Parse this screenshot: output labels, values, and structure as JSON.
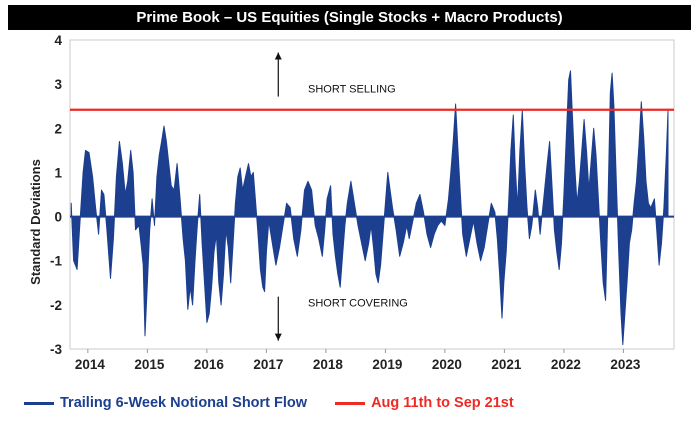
{
  "title": "Prime Book – US Equities (Single Stocks + Macro Products)",
  "colors": {
    "series": "#1c3f8f",
    "threshold": "#ee2a24",
    "title_bg": "#000000"
  },
  "chart_data": {
    "type": "area",
    "title": "Prime Book – US Equities (Single Stocks + Macro Products)",
    "ylabel": "Standard Deviations",
    "xlabel": "",
    "ylim": [
      -3,
      4
    ],
    "yticks": [
      "-3",
      "-2",
      "-1",
      "0",
      "1",
      "2",
      "3",
      "4"
    ],
    "xlim": [
      2013.7,
      2023.85
    ],
    "xticks": [
      "2014",
      "2015",
      "2016",
      "2017",
      "2018",
      "2019",
      "2020",
      "2021",
      "2022",
      "2023"
    ],
    "grid": false,
    "legend_position": "bottom",
    "annotations": [
      {
        "text": "SHORT SELLING",
        "x": 2017.7,
        "y": 2.9,
        "arrow": "up"
      },
      {
        "text": "SHORT COVERING",
        "x": 2017.7,
        "y": -1.95,
        "arrow": "down"
      }
    ],
    "series": [
      {
        "name": "Trailing 6-Week Notional Short Flow",
        "style": "area",
        "points": [
          [
            2013.72,
            0.3
          ],
          [
            2013.76,
            -1.0
          ],
          [
            2013.82,
            -1.2
          ],
          [
            2013.86,
            -0.3
          ],
          [
            2013.92,
            1.0
          ],
          [
            2013.96,
            1.5
          ],
          [
            2014.02,
            1.45
          ],
          [
            2014.08,
            0.9
          ],
          [
            2014.13,
            0.2
          ],
          [
            2014.18,
            -0.4
          ],
          [
            2014.23,
            0.6
          ],
          [
            2014.27,
            0.5
          ],
          [
            2014.32,
            -0.3
          ],
          [
            2014.38,
            -1.4
          ],
          [
            2014.43,
            -0.5
          ],
          [
            2014.48,
            0.9
          ],
          [
            2014.53,
            1.7
          ],
          [
            2014.58,
            1.2
          ],
          [
            2014.63,
            0.5
          ],
          [
            2014.67,
            0.8
          ],
          [
            2014.72,
            1.5
          ],
          [
            2014.76,
            1.0
          ],
          [
            2014.8,
            -0.3
          ],
          [
            2014.86,
            -0.2
          ],
          [
            2014.9,
            -0.7
          ],
          [
            2014.93,
            -1.1
          ],
          [
            2014.96,
            -2.7
          ],
          [
            2015.0,
            -1.5
          ],
          [
            2015.04,
            -0.3
          ],
          [
            2015.08,
            0.4
          ],
          [
            2015.12,
            -0.2
          ],
          [
            2015.16,
            0.9
          ],
          [
            2015.2,
            1.4
          ],
          [
            2015.24,
            1.7
          ],
          [
            2015.28,
            2.05
          ],
          [
            2015.32,
            1.7
          ],
          [
            2015.36,
            1.2
          ],
          [
            2015.4,
            0.7
          ],
          [
            2015.45,
            0.6
          ],
          [
            2015.5,
            1.2
          ],
          [
            2015.55,
            0.4
          ],
          [
            2015.6,
            -0.5
          ],
          [
            2015.64,
            -1.0
          ],
          [
            2015.68,
            -2.1
          ],
          [
            2015.72,
            -1.6
          ],
          [
            2015.76,
            -2.0
          ],
          [
            2015.8,
            -1.0
          ],
          [
            2015.84,
            -0.2
          ],
          [
            2015.88,
            0.5
          ],
          [
            2015.92,
            -0.6
          ],
          [
            2015.96,
            -1.5
          ],
          [
            2016.0,
            -2.4
          ],
          [
            2016.04,
            -2.2
          ],
          [
            2016.08,
            -1.6
          ],
          [
            2016.12,
            -0.8
          ],
          [
            2016.16,
            -0.4
          ],
          [
            2016.2,
            -1.5
          ],
          [
            2016.24,
            -2.0
          ],
          [
            2016.28,
            -1.3
          ],
          [
            2016.32,
            -0.3
          ],
          [
            2016.36,
            -0.7
          ],
          [
            2016.4,
            -1.5
          ],
          [
            2016.44,
            -0.6
          ],
          [
            2016.48,
            0.3
          ],
          [
            2016.52,
            0.9
          ],
          [
            2016.56,
            1.1
          ],
          [
            2016.6,
            0.6
          ],
          [
            2016.65,
            0.9
          ],
          [
            2016.7,
            1.2
          ],
          [
            2016.74,
            0.9
          ],
          [
            2016.78,
            1.0
          ],
          [
            2016.82,
            0.3
          ],
          [
            2016.86,
            -0.4
          ],
          [
            2016.9,
            -1.2
          ],
          [
            2016.94,
            -1.6
          ],
          [
            2016.97,
            -1.7
          ],
          [
            2017.0,
            -0.8
          ],
          [
            2017.04,
            -0.1
          ],
          [
            2017.1,
            -0.6
          ],
          [
            2017.16,
            -1.1
          ],
          [
            2017.22,
            -0.7
          ],
          [
            2017.28,
            -0.2
          ],
          [
            2017.34,
            0.3
          ],
          [
            2017.4,
            0.2
          ],
          [
            2017.46,
            -0.5
          ],
          [
            2017.52,
            -0.9
          ],
          [
            2017.58,
            -0.3
          ],
          [
            2017.64,
            0.6
          ],
          [
            2017.7,
            0.8
          ],
          [
            2017.76,
            0.6
          ],
          [
            2017.82,
            -0.2
          ],
          [
            2017.88,
            -0.5
          ],
          [
            2017.94,
            -0.9
          ],
          [
            2017.98,
            -0.3
          ],
          [
            2018.02,
            0.4
          ],
          [
            2018.08,
            0.7
          ],
          [
            2018.12,
            -0.4
          ],
          [
            2018.16,
            -0.9
          ],
          [
            2018.2,
            -1.3
          ],
          [
            2018.24,
            -1.6
          ],
          [
            2018.28,
            -0.9
          ],
          [
            2018.32,
            -0.2
          ],
          [
            2018.36,
            0.3
          ],
          [
            2018.42,
            0.8
          ],
          [
            2018.48,
            0.3
          ],
          [
            2018.54,
            -0.2
          ],
          [
            2018.6,
            -0.6
          ],
          [
            2018.66,
            -1.0
          ],
          [
            2018.72,
            -0.6
          ],
          [
            2018.76,
            -0.2
          ],
          [
            2018.8,
            -0.7
          ],
          [
            2018.84,
            -1.3
          ],
          [
            2018.88,
            -1.5
          ],
          [
            2018.92,
            -1.1
          ],
          [
            2018.96,
            -0.4
          ],
          [
            2019.0,
            0.3
          ],
          [
            2019.04,
            1.0
          ],
          [
            2019.08,
            0.6
          ],
          [
            2019.12,
            0.2
          ],
          [
            2019.18,
            -0.3
          ],
          [
            2019.24,
            -0.9
          ],
          [
            2019.3,
            -0.6
          ],
          [
            2019.36,
            -0.2
          ],
          [
            2019.4,
            -0.5
          ],
          [
            2019.46,
            -0.1
          ],
          [
            2019.52,
            0.3
          ],
          [
            2019.58,
            0.5
          ],
          [
            2019.64,
            0.1
          ],
          [
            2019.7,
            -0.4
          ],
          [
            2019.76,
            -0.7
          ],
          [
            2019.82,
            -0.4
          ],
          [
            2019.88,
            -0.2
          ],
          [
            2019.94,
            -0.1
          ],
          [
            2020.0,
            -0.2
          ],
          [
            2020.06,
            0.4
          ],
          [
            2020.1,
            1.0
          ],
          [
            2020.14,
            1.7
          ],
          [
            2020.18,
            2.55
          ],
          [
            2020.22,
            1.5
          ],
          [
            2020.26,
            0.5
          ],
          [
            2020.3,
            -0.4
          ],
          [
            2020.36,
            -0.9
          ],
          [
            2020.42,
            -0.5
          ],
          [
            2020.48,
            -0.1
          ],
          [
            2020.54,
            -0.6
          ],
          [
            2020.6,
            -1.0
          ],
          [
            2020.66,
            -0.7
          ],
          [
            2020.72,
            -0.2
          ],
          [
            2020.78,
            0.3
          ],
          [
            2020.84,
            0.1
          ],
          [
            2020.88,
            -0.5
          ],
          [
            2020.92,
            -1.3
          ],
          [
            2020.96,
            -2.3
          ],
          [
            2020.99,
            -1.5
          ],
          [
            2021.03,
            -0.8
          ],
          [
            2021.07,
            0.3
          ],
          [
            2021.11,
            1.5
          ],
          [
            2021.15,
            2.3
          ],
          [
            2021.18,
            1.2
          ],
          [
            2021.22,
            0.2
          ],
          [
            2021.26,
            1.5
          ],
          [
            2021.3,
            2.4
          ],
          [
            2021.34,
            1.2
          ],
          [
            2021.38,
            0.2
          ],
          [
            2021.42,
            -0.5
          ],
          [
            2021.46,
            -0.2
          ],
          [
            2021.52,
            0.6
          ],
          [
            2021.56,
            0.2
          ],
          [
            2021.6,
            -0.4
          ],
          [
            2021.66,
            0.4
          ],
          [
            2021.72,
            1.2
          ],
          [
            2021.76,
            1.7
          ],
          [
            2021.8,
            0.7
          ],
          [
            2021.84,
            -0.3
          ],
          [
            2021.88,
            -0.8
          ],
          [
            2021.92,
            -1.2
          ],
          [
            2021.96,
            -0.6
          ],
          [
            2022.0,
            0.5
          ],
          [
            2022.04,
            1.8
          ],
          [
            2022.08,
            3.1
          ],
          [
            2022.11,
            3.3
          ],
          [
            2022.14,
            2.4
          ],
          [
            2022.18,
            1.2
          ],
          [
            2022.22,
            0.3
          ],
          [
            2022.26,
            0.8
          ],
          [
            2022.3,
            1.5
          ],
          [
            2022.34,
            2.2
          ],
          [
            2022.38,
            1.5
          ],
          [
            2022.42,
            0.6
          ],
          [
            2022.46,
            1.3
          ],
          [
            2022.5,
            2.0
          ],
          [
            2022.54,
            1.4
          ],
          [
            2022.58,
            0.4
          ],
          [
            2022.62,
            -0.6
          ],
          [
            2022.66,
            -1.5
          ],
          [
            2022.7,
            -1.9
          ],
          [
            2022.74,
            0.2
          ],
          [
            2022.78,
            2.8
          ],
          [
            2022.81,
            3.25
          ],
          [
            2022.84,
            2.5
          ],
          [
            2022.88,
            0.8
          ],
          [
            2022.92,
            -0.8
          ],
          [
            2022.96,
            -2.2
          ],
          [
            2022.99,
            -2.9
          ],
          [
            2023.02,
            -2.3
          ],
          [
            2023.06,
            -1.5
          ],
          [
            2023.1,
            -0.6
          ],
          [
            2023.14,
            -0.3
          ],
          [
            2023.18,
            0.3
          ],
          [
            2023.22,
            0.8
          ],
          [
            2023.26,
            1.6
          ],
          [
            2023.3,
            2.6
          ],
          [
            2023.34,
            1.8
          ],
          [
            2023.38,
            0.8
          ],
          [
            2023.42,
            0.3
          ],
          [
            2023.46,
            0.2
          ],
          [
            2023.52,
            0.4
          ],
          [
            2023.56,
            -0.3
          ],
          [
            2023.6,
            -1.1
          ],
          [
            2023.64,
            -0.6
          ],
          [
            2023.68,
            0.2
          ],
          [
            2023.72,
            1.4
          ],
          [
            2023.75,
            2.4
          ]
        ]
      },
      {
        "name": "Aug 11th to Sep 21st",
        "style": "hline",
        "y": 2.42
      }
    ]
  }
}
